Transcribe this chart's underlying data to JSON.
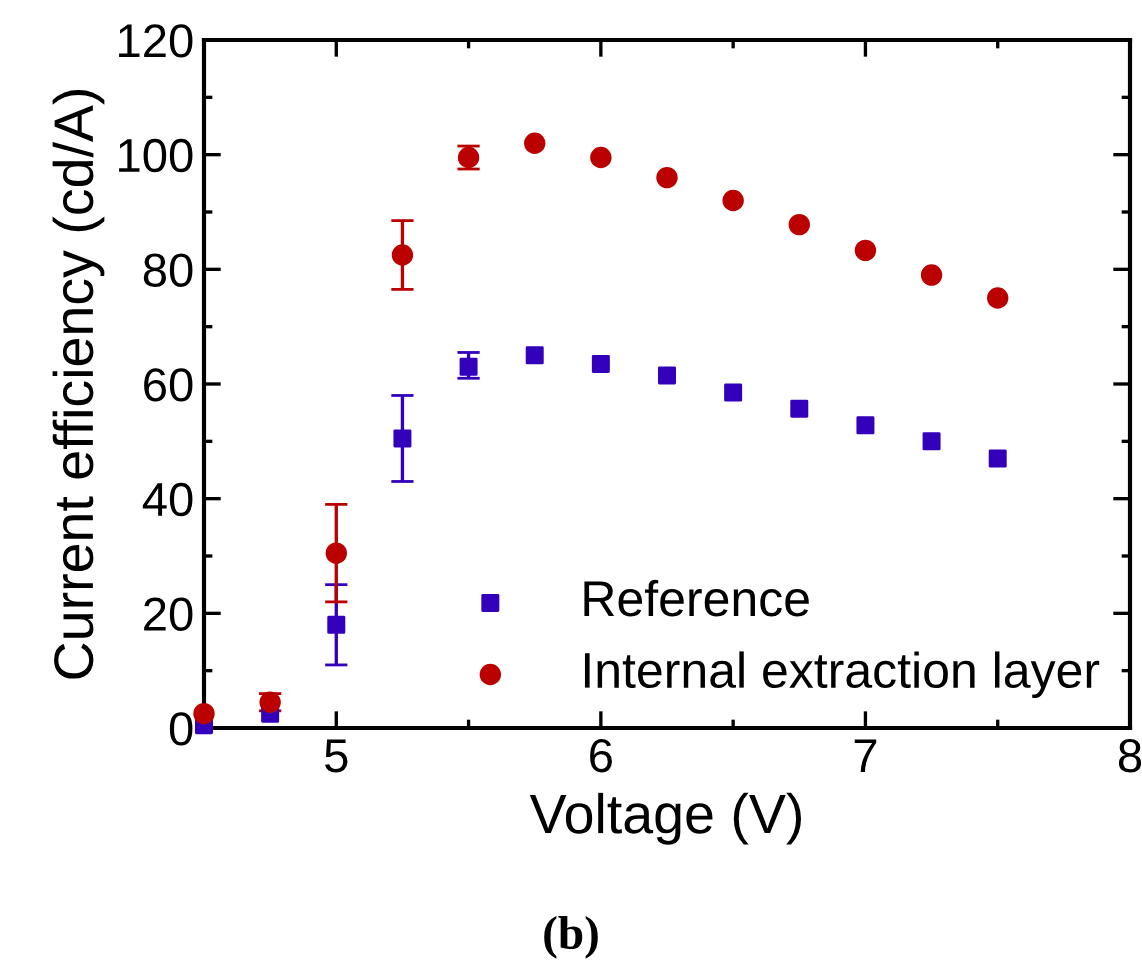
{
  "chart_data": {
    "type": "scatter",
    "xlabel": "Voltage (V)",
    "ylabel": "Current efficiency (cd/A)",
    "annotations": [
      "(b)"
    ],
    "x": [
      4.5,
      4.75,
      5,
      5.25,
      5.5,
      5.75,
      6,
      6.25,
      6.5,
      6.75,
      7,
      7.25,
      7.5
    ],
    "series": [
      {
        "name": "Reference",
        "color": "#3300bb",
        "marker": "square",
        "values": [
          0.5,
          2.5,
          18,
          50.5,
          63,
          65,
          63.5,
          61.5,
          58.5,
          55.7,
          52.8,
          50,
          47
        ],
        "errors": [
          null,
          null,
          [
            11,
            25
          ],
          [
            43,
            58
          ],
          [
            61,
            65.5
          ],
          null,
          null,
          null,
          null,
          null,
          null,
          null,
          null
        ]
      },
      {
        "name": "Internal extraction layer",
        "color": "#bb0000",
        "marker": "circle",
        "values": [
          2.5,
          4.5,
          30.5,
          82.5,
          99.5,
          102,
          99.5,
          96,
          92,
          87.8,
          83.3,
          79,
          75
        ],
        "errors": [
          null,
          [
            3,
            6
          ],
          [
            22,
            39
          ],
          [
            76.5,
            88.5
          ],
          [
            97.5,
            101.5
          ],
          null,
          null,
          null,
          null,
          null,
          null,
          null,
          null
        ]
      }
    ],
    "xlim": [
      4.5,
      8
    ],
    "xticks": [
      5,
      6,
      7,
      8
    ],
    "ylim": [
      0,
      120
    ],
    "yticks": [
      0,
      20,
      40,
      60,
      80,
      100,
      120
    ],
    "grid": false,
    "legend": "bottom right"
  }
}
